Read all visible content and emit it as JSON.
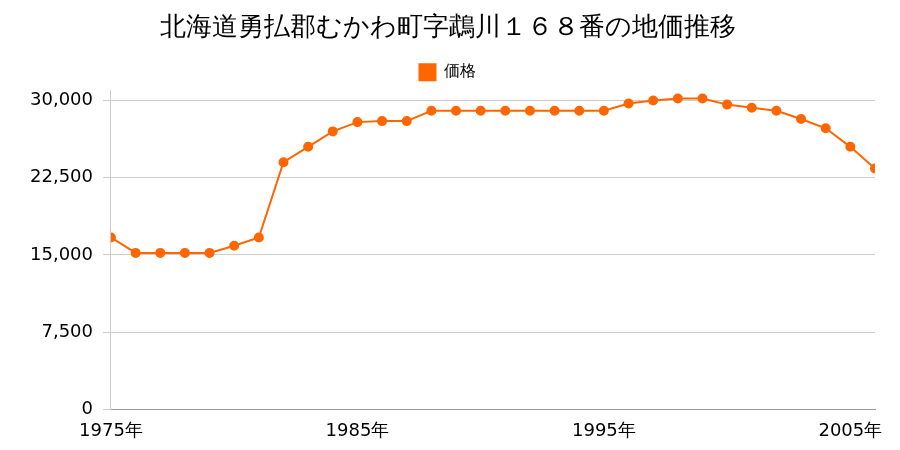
{
  "chart_data": {
    "type": "line",
    "title": "北海道勇払郡むかわ町字鵡川１６８番の地価推移",
    "categories": [
      "1975年",
      null,
      null,
      null,
      null,
      null,
      null,
      null,
      null,
      null,
      "1985年",
      null,
      null,
      null,
      null,
      null,
      null,
      null,
      null,
      null,
      "1995年",
      null,
      null,
      null,
      null,
      null,
      null,
      null,
      null,
      null,
      "2005年",
      null
    ],
    "series": [
      {
        "name": "価格",
        "color": "#ff6600",
        "marker": "circle",
        "values": [
          16700,
          15200,
          15200,
          15200,
          15200,
          15900,
          16700,
          24000,
          25500,
          27000,
          27900,
          28000,
          28000,
          29000,
          29000,
          29000,
          29000,
          29000,
          29000,
          29000,
          29000,
          29700,
          30000,
          30200,
          30200,
          29600,
          29300,
          29000,
          28200,
          27300,
          25500,
          23400
        ]
      }
    ],
    "ylim": [
      0,
      31000
    ],
    "yticks": [
      0,
      {
        "value": 7500,
        "label": "7,500"
      },
      {
        "value": 15000,
        "label": "15,000"
      },
      {
        "value": 22500,
        "label": "22,500"
      },
      {
        "value": 30000,
        "label": "30,000"
      }
    ],
    "grid": true,
    "legend": "top"
  }
}
